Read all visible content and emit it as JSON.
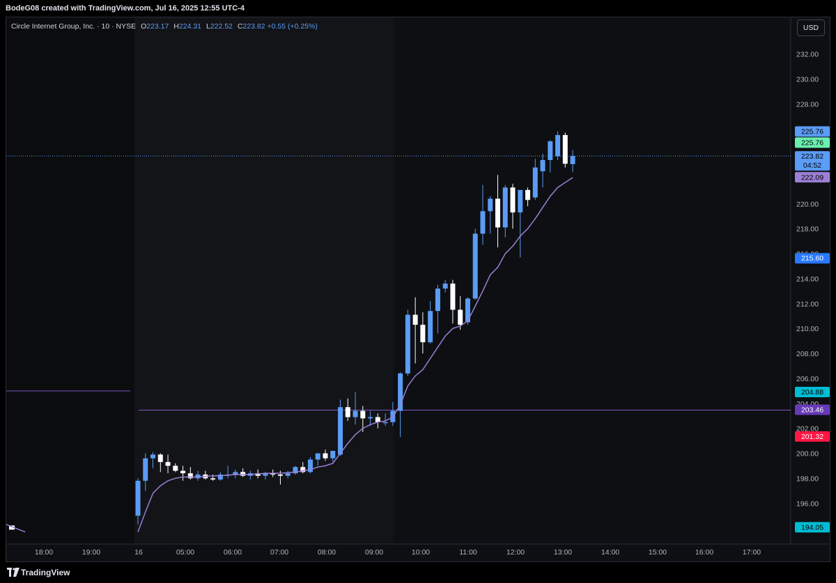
{
  "header": {
    "attribution": "BodeG08 created with TradingView.com, Jul 16, 2025 12:55 UTC-4"
  },
  "legend": {
    "symbol": "Circle Internet Group, Inc. · 10 · NYSE",
    "o_label": "O",
    "o": "223.17",
    "h_label": "H",
    "h": "224.31",
    "l_label": "L",
    "l": "222.52",
    "c_label": "C",
    "c": "223.82",
    "change": "+0.55 (+0.25%)"
  },
  "currency": "USD",
  "footer": {
    "brand": "TradingView"
  },
  "colors": {
    "up": "#5b9cf6",
    "down": "#ffffff",
    "ema": "#9c7fd6",
    "hline": "#7e57c2",
    "grid_bg": "#0e0f12",
    "premarket_bg": "#0b0c0e"
  },
  "chart_data": {
    "type": "candlestick",
    "interval": "10",
    "y_ticks": [
      "196.00",
      "198.00",
      "200.00",
      "202.00",
      "204.00",
      "206.00",
      "208.00",
      "210.00",
      "212.00",
      "214.00",
      "216.00",
      "218.00",
      "220.00",
      "222.00",
      "224.00",
      "226.00",
      "228.00",
      "230.00",
      "232.00"
    ],
    "ylim": [
      193.5,
      233.5
    ],
    "x_ticks": [
      "18:00",
      "19:00",
      "16",
      "05:00",
      "06:00",
      "07:00",
      "08:00",
      "09:00",
      "10:00",
      "11:00",
      "12:00",
      "13:00",
      "14:00",
      "15:00",
      "16:00",
      "17:00"
    ],
    "price_labels": [
      {
        "text": "225.76",
        "value": 225.76,
        "color": "#5b9cf6",
        "text_color": "#000000"
      },
      {
        "text": "225.76",
        "value": 225.76,
        "color": "#69f0ae",
        "text_color": "#000000",
        "stack": 1
      },
      {
        "text": "223.82",
        "value": 223.82,
        "color": "#5b9cf6",
        "text_color": "#000000",
        "sub": "04:52"
      },
      {
        "text": "222.09",
        "value": 222.09,
        "color": "#9c7fd6",
        "text_color": "#000000"
      },
      {
        "text": "215.60",
        "value": 215.6,
        "color": "#2979ff",
        "text_color": "#ffffff"
      },
      {
        "text": "204.88",
        "value": 204.88,
        "color": "#00bcd4",
        "text_color": "#000000"
      },
      {
        "text": "203.46",
        "value": 203.46,
        "color": "#673ab7",
        "text_color": "#ffffff"
      },
      {
        "text": "201.32",
        "value": 201.32,
        "color": "#ff1744",
        "text_color": "#ffffff"
      },
      {
        "text": "194.05",
        "value": 194.05,
        "color": "#00bcd4",
        "text_color": "#000000"
      }
    ],
    "horizontal_lines": [
      {
        "value": 205.0,
        "session": "previous"
      },
      {
        "value": 203.46,
        "session": "current"
      }
    ],
    "candles": [
      [
        195.0,
        198.0,
        194.3,
        197.8
      ],
      [
        197.8,
        200.0,
        197.0,
        199.6
      ],
      [
        199.6,
        200.1,
        198.8,
        199.9
      ],
      [
        199.9,
        200.0,
        198.5,
        199.3
      ],
      [
        199.3,
        199.9,
        198.4,
        199.0
      ],
      [
        199.0,
        199.2,
        198.5,
        198.6
      ],
      [
        198.6,
        199.0,
        197.8,
        198.4
      ],
      [
        198.4,
        198.9,
        197.9,
        198.0
      ],
      [
        198.0,
        198.6,
        197.8,
        198.3
      ],
      [
        198.3,
        198.6,
        197.9,
        198.0
      ],
      [
        198.0,
        198.3,
        197.8,
        197.9
      ],
      [
        197.9,
        198.5,
        197.8,
        198.3
      ],
      [
        198.3,
        199.0,
        198.0,
        198.3
      ],
      [
        198.3,
        198.7,
        198.0,
        198.5
      ],
      [
        198.5,
        198.8,
        198.1,
        198.2
      ],
      [
        198.2,
        198.6,
        197.9,
        198.4
      ],
      [
        198.4,
        198.7,
        198.0,
        198.2
      ],
      [
        198.2,
        198.5,
        197.9,
        198.4
      ],
      [
        198.4,
        198.7,
        198.1,
        198.3
      ],
      [
        198.3,
        198.6,
        197.5,
        198.2
      ],
      [
        198.2,
        198.6,
        198.0,
        198.4
      ],
      [
        198.4,
        199.0,
        198.3,
        198.9
      ],
      [
        198.9,
        199.3,
        198.4,
        198.5
      ],
      [
        198.5,
        199.7,
        198.4,
        199.5
      ],
      [
        199.5,
        200.0,
        199.0,
        200.0
      ],
      [
        200.0,
        200.3,
        199.4,
        199.6
      ],
      [
        199.6,
        200.2,
        199.3,
        200.2
      ],
      [
        199.9,
        204.3,
        199.8,
        203.7
      ],
      [
        203.7,
        204.4,
        202.6,
        202.9
      ],
      [
        202.9,
        204.9,
        202.3,
        203.4
      ],
      [
        203.4,
        203.8,
        201.7,
        202.8
      ],
      [
        202.8,
        203.4,
        202.2,
        202.9
      ],
      [
        202.9,
        203.2,
        202.0,
        202.5
      ],
      [
        202.5,
        203.2,
        202.2,
        202.5
      ],
      [
        202.5,
        204.1,
        202.2,
        203.4
      ],
      [
        203.4,
        206.5,
        201.3,
        206.4
      ],
      [
        206.4,
        211.5,
        206.2,
        211.1
      ],
      [
        211.1,
        212.5,
        207.2,
        210.3
      ],
      [
        210.3,
        211.3,
        208.0,
        208.9
      ],
      [
        208.9,
        212.2,
        208.8,
        211.4
      ],
      [
        211.4,
        213.5,
        209.6,
        213.2
      ],
      [
        213.2,
        213.9,
        212.9,
        213.6
      ],
      [
        213.6,
        213.9,
        210.4,
        211.5
      ],
      [
        211.5,
        212.6,
        209.9,
        210.3
      ],
      [
        210.5,
        212.5,
        210.3,
        212.4
      ],
      [
        212.4,
        218.0,
        212.3,
        217.6
      ],
      [
        217.6,
        221.5,
        216.7,
        219.4
      ],
      [
        219.4,
        220.6,
        217.6,
        220.4
      ],
      [
        220.4,
        222.3,
        216.5,
        218.1
      ],
      [
        218.1,
        221.5,
        217.3,
        221.3
      ],
      [
        221.3,
        221.6,
        218.0,
        219.3
      ],
      [
        219.3,
        221.0,
        215.7,
        221.1
      ],
      [
        221.1,
        221.3,
        219.8,
        220.3
      ],
      [
        220.5,
        223.6,
        220.3,
        222.9
      ],
      [
        222.6,
        224.0,
        221.3,
        223.5
      ],
      [
        223.5,
        225.1,
        222.5,
        225.0
      ],
      [
        223.8,
        225.8,
        223.5,
        225.5
      ],
      [
        225.5,
        225.7,
        222.9,
        223.2
      ],
      [
        223.17,
        224.31,
        222.52,
        223.82
      ]
    ],
    "ema": [
      [
        193.7,
        0
      ],
      [
        195.3,
        1
      ],
      [
        196.8,
        2
      ],
      [
        197.4,
        3
      ],
      [
        197.8,
        4
      ],
      [
        198.0,
        5
      ],
      [
        198.1,
        6
      ],
      [
        198.1,
        7
      ],
      [
        198.1,
        8
      ],
      [
        198.15,
        9
      ],
      [
        198.2,
        10
      ],
      [
        198.2,
        11
      ],
      [
        198.25,
        12
      ],
      [
        198.3,
        13
      ],
      [
        198.3,
        14
      ],
      [
        198.3,
        15
      ],
      [
        198.35,
        16
      ],
      [
        198.4,
        17
      ],
      [
        198.4,
        18
      ],
      [
        198.4,
        19
      ],
      [
        198.45,
        20
      ],
      [
        198.5,
        21
      ],
      [
        198.6,
        22
      ],
      [
        198.7,
        23
      ],
      [
        198.9,
        24
      ],
      [
        199.0,
        25
      ],
      [
        199.2,
        26
      ],
      [
        200.0,
        27
      ],
      [
        200.8,
        28
      ],
      [
        201.5,
        29
      ],
      [
        202.0,
        30
      ],
      [
        202.3,
        31
      ],
      [
        202.5,
        32
      ],
      [
        202.6,
        33
      ],
      [
        202.9,
        34
      ],
      [
        203.9,
        35
      ],
      [
        205.4,
        36
      ],
      [
        206.2,
        37
      ],
      [
        206.7,
        38
      ],
      [
        207.6,
        39
      ],
      [
        208.5,
        40
      ],
      [
        209.4,
        41
      ],
      [
        210.0,
        42
      ],
      [
        210.2,
        43
      ],
      [
        210.6,
        44
      ],
      [
        211.8,
        45
      ],
      [
        213.0,
        46
      ],
      [
        214.3,
        47
      ],
      [
        214.9,
        48
      ],
      [
        216.0,
        49
      ],
      [
        216.6,
        50
      ],
      [
        217.4,
        51
      ],
      [
        218.0,
        52
      ],
      [
        218.8,
        53
      ],
      [
        219.7,
        54
      ],
      [
        220.6,
        55
      ],
      [
        221.3,
        56
      ],
      [
        221.7,
        57
      ],
      [
        222.09,
        58
      ]
    ]
  }
}
